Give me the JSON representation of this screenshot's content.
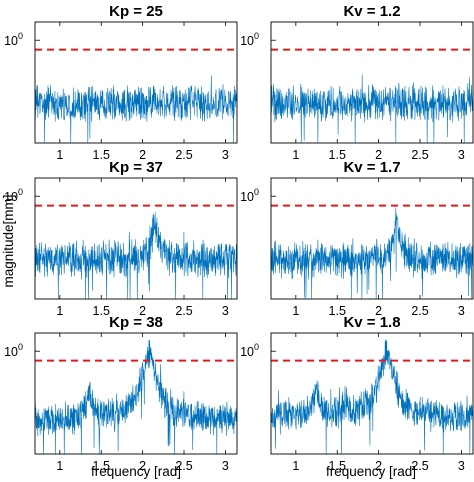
{
  "figure": {
    "ylabel": "magnitude[mm]",
    "xlabel": "frequency [rad]",
    "ytick_label": {
      "base": "10",
      "exp": "0"
    }
  },
  "colors": {
    "signal": "#0072bd",
    "threshold": "#e31a1c",
    "axes": "#000000"
  },
  "chart_data": [
    {
      "type": "line",
      "title": "Kp = 25",
      "xlabel": "",
      "ylabel": "magnitude[mm]",
      "xticks": [
        1,
        1.5,
        2,
        2.5,
        3
      ],
      "xlim": [
        0.7,
        3.14
      ],
      "yscale": "log",
      "ytick_values": [
        1
      ],
      "grid": false,
      "threshold": 0.7,
      "series": [
        {
          "name": "",
          "baseline": 0.09,
          "noise_decades": 0.22,
          "peaks": []
        }
      ]
    },
    {
      "type": "line",
      "title": "Kv = 1.2",
      "xlabel": "",
      "ylabel": "",
      "xticks": [
        1,
        1.5,
        2,
        2.5,
        3
      ],
      "xlim": [
        0.7,
        3.14
      ],
      "yscale": "log",
      "ytick_values": [
        1
      ],
      "grid": false,
      "threshold": 0.7,
      "series": [
        {
          "name": "",
          "baseline": 0.09,
          "noise_decades": 0.22,
          "peaks": []
        }
      ]
    },
    {
      "type": "line",
      "title": "Kp = 37",
      "xlabel": "",
      "ylabel": "magnitude[mm]",
      "xticks": [
        1,
        1.5,
        2,
        2.5,
        3
      ],
      "xlim": [
        0.7,
        3.14
      ],
      "yscale": "log",
      "ytick_values": [
        1
      ],
      "grid": false,
      "threshold": 0.7,
      "series": [
        {
          "name": "",
          "baseline": 0.09,
          "noise_decades": 0.22,
          "peaks": [
            {
              "x": 2.15,
              "y": 0.32,
              "width": 0.04
            }
          ]
        }
      ]
    },
    {
      "type": "line",
      "title": "Kv = 1.7",
      "xlabel": "",
      "ylabel": "",
      "xticks": [
        1,
        1.5,
        2,
        2.5,
        3
      ],
      "xlim": [
        0.7,
        3.14
      ],
      "yscale": "log",
      "ytick_values": [
        1
      ],
      "grid": false,
      "threshold": 0.7,
      "series": [
        {
          "name": "",
          "baseline": 0.09,
          "noise_decades": 0.22,
          "peaks": [
            {
              "x": 2.22,
              "y": 0.38,
              "width": 0.03
            }
          ]
        }
      ]
    },
    {
      "type": "line",
      "title": "Kp = 38",
      "xlabel": "frequency [rad]",
      "ylabel": "magnitude[mm]",
      "xticks": [
        1,
        1.5,
        2,
        2.5,
        3
      ],
      "xlim": [
        0.7,
        3.14
      ],
      "yscale": "log",
      "ytick_values": [
        1
      ],
      "grid": false,
      "threshold": 0.7,
      "series": [
        {
          "name": "",
          "baseline": 0.07,
          "noise_decades": 0.2,
          "peaks": [
            {
              "x": 1.35,
              "y": 0.2,
              "width": 0.04
            },
            {
              "x": 2.08,
              "y": 1.0,
              "width": 0.06
            }
          ]
        }
      ]
    },
    {
      "type": "line",
      "title": "Kv = 1.8",
      "xlabel": "frequency [rad]",
      "ylabel": "",
      "xticks": [
        1,
        1.5,
        2,
        2.5,
        3
      ],
      "xlim": [
        0.7,
        3.14
      ],
      "yscale": "log",
      "ytick_values": [
        1
      ],
      "grid": false,
      "threshold": 0.7,
      "series": [
        {
          "name": "",
          "baseline": 0.08,
          "noise_decades": 0.2,
          "peaks": [
            {
              "x": 1.25,
              "y": 0.22,
              "width": 0.04
            },
            {
              "x": 1.6,
              "y": 0.13,
              "width": 0.04
            },
            {
              "x": 2.1,
              "y": 0.9,
              "width": 0.06
            }
          ]
        }
      ]
    }
  ]
}
